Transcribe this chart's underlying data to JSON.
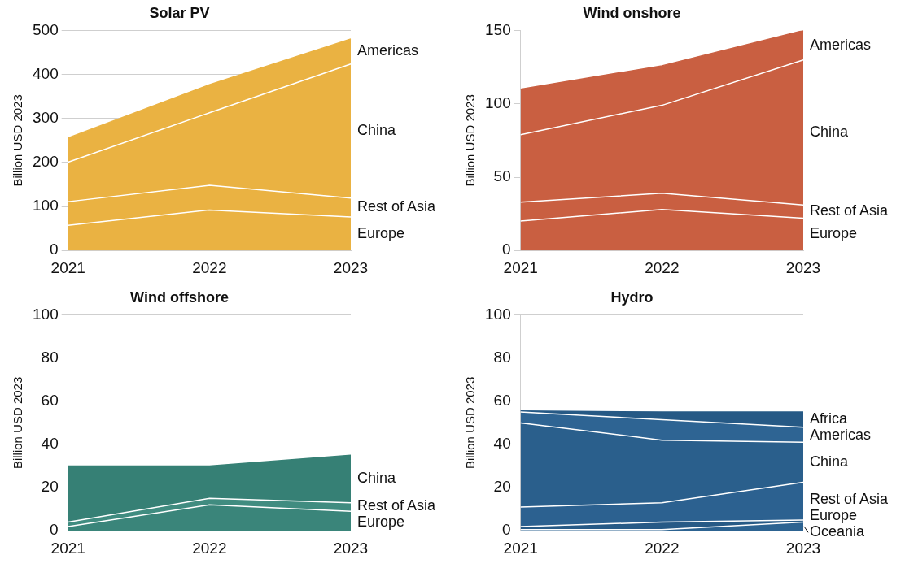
{
  "chart_data": [
    {
      "type": "area",
      "title": "Solar PV",
      "ylabel": "Billion USD 2023",
      "categories": [
        "2021",
        "2022",
        "2023"
      ],
      "stacked": true,
      "grid": "y",
      "ylim": [
        0,
        500
      ],
      "yticks": [
        0,
        100,
        200,
        300,
        400,
        500
      ],
      "series": [
        {
          "name": "Europe",
          "color": "#eab242",
          "values": [
            57,
            92,
            76
          ]
        },
        {
          "name": "Rest of Asia",
          "color": "#eab242",
          "values": [
            54,
            56,
            43
          ]
        },
        {
          "name": "China",
          "color": "#eab242",
          "values": [
            90,
            165,
            305
          ]
        },
        {
          "name": "Americas",
          "color": "#eab242",
          "values": [
            55,
            64,
            57
          ]
        }
      ]
    },
    {
      "type": "area",
      "title": "Wind onshore",
      "ylabel": "Billion USD 2023",
      "categories": [
        "2021",
        "2022",
        "2023"
      ],
      "stacked": true,
      "ylim": [
        0,
        150
      ],
      "yticks": [
        0,
        50,
        100,
        150
      ],
      "series": [
        {
          "name": "Europe",
          "color": "#c95f41",
          "values": [
            20,
            28,
            22
          ]
        },
        {
          "name": "Rest of Asia",
          "color": "#c95f41",
          "values": [
            13,
            11,
            9
          ]
        },
        {
          "name": "China",
          "color": "#c95f41",
          "values": [
            46,
            60,
            99
          ]
        },
        {
          "name": "Americas",
          "color": "#c95f41",
          "values": [
            31,
            27,
            20
          ]
        }
      ]
    },
    {
      "type": "area",
      "title": "Wind offshore",
      "ylabel": "Billion USD 2023",
      "categories": [
        "2021",
        "2022",
        "2023"
      ],
      "stacked": true,
      "grid": "y",
      "ylim": [
        0,
        100
      ],
      "yticks": [
        0,
        20,
        40,
        60,
        80,
        100
      ],
      "series": [
        {
          "name": "Europe",
          "color": "#3a857a",
          "values": [
            2,
            12,
            9
          ]
        },
        {
          "name": "Rest of Asia",
          "color": "#408c80",
          "values": [
            2,
            3,
            4
          ]
        },
        {
          "name": "China",
          "color": "#368075",
          "values": [
            26,
            15,
            22
          ]
        }
      ]
    },
    {
      "type": "area",
      "title": "Hydro",
      "ylabel": "Billion USD 2023",
      "categories": [
        "2021",
        "2022",
        "2023"
      ],
      "stacked": true,
      "grid": "y",
      "ylim": [
        0,
        100
      ],
      "yticks": [
        0,
        20,
        40,
        60,
        80,
        100
      ],
      "series": [
        {
          "name": "Oceania",
          "color": "#2d6391",
          "values": [
            0.5,
            0.5,
            4
          ]
        },
        {
          "name": "Europe",
          "color": "#275a86",
          "values": [
            1.5,
            3.5,
            1
          ]
        },
        {
          "name": "Rest of Asia",
          "color": "#2c6190",
          "values": [
            9,
            9,
            17.5
          ]
        },
        {
          "name": "China",
          "color": "#2a5f8c",
          "values": [
            39,
            29,
            18.5
          ]
        },
        {
          "name": "Americas",
          "color": "#2e6493",
          "values": [
            5,
            9.5,
            7
          ]
        },
        {
          "name": "Africa",
          "color": "#265985",
          "values": [
            0.5,
            3.5,
            7
          ]
        }
      ]
    }
  ]
}
